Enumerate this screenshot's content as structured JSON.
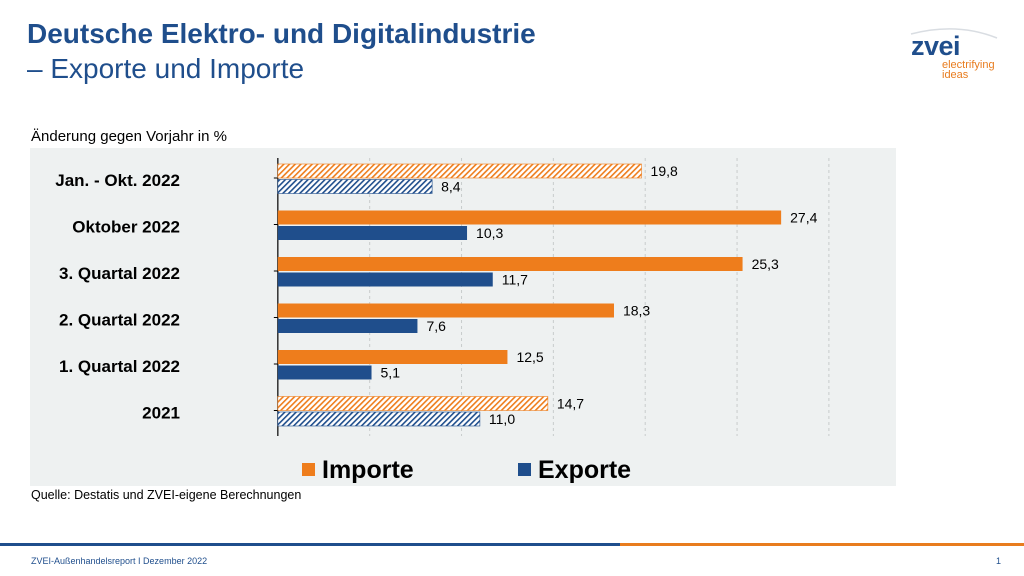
{
  "header": {
    "title_line1": "Deutsche Elektro- und Digitalindustrie",
    "title_line2": "– Exporte und Importe"
  },
  "logo": {
    "word": "zvei",
    "tagline_1": "electrifying",
    "tagline_2": "ideas"
  },
  "colors": {
    "brand_blue": "#1f4e8c",
    "importe_orange": "#ee7d1c",
    "exporte_blue": "#1f4e8c",
    "plot_background": "#eef1f1"
  },
  "chart_data": {
    "type": "bar",
    "orientation": "horizontal",
    "subtitle": "Änderung gegen Vorjahr in %",
    "categories": [
      "Jan. - Okt. 2022",
      "Oktober 2022",
      "3. Quartal 2022",
      "2. Quartal 2022",
      "1. Quartal 2022",
      "2021"
    ],
    "series": [
      {
        "name": "Importe",
        "color": "#ee7d1c",
        "values": [
          19.8,
          27.4,
          25.3,
          18.3,
          12.5,
          14.7
        ],
        "labels": [
          "19,8",
          "27,4",
          "25,3",
          "18,3",
          "12,5",
          "14,7"
        ]
      },
      {
        "name": "Exporte",
        "color": "#1f4e8c",
        "values": [
          8.4,
          10.3,
          11.7,
          7.6,
          5.1,
          11.0
        ],
        "labels": [
          "8,4",
          "10,3",
          "11,7",
          "7,6",
          "5,1",
          "11,0"
        ]
      }
    ],
    "hatched_categories": [
      "Jan. - Okt. 2022",
      "2021"
    ],
    "xlim": [
      -5,
      33
    ],
    "grid": "vertical dashed",
    "legend_position": "bottom"
  },
  "source": "Quelle: Destatis und ZVEI-eigene Berechnungen",
  "footer": {
    "text": "ZVEI-Außenhandelsreport I Dezember 2022",
    "page_number": "1"
  }
}
